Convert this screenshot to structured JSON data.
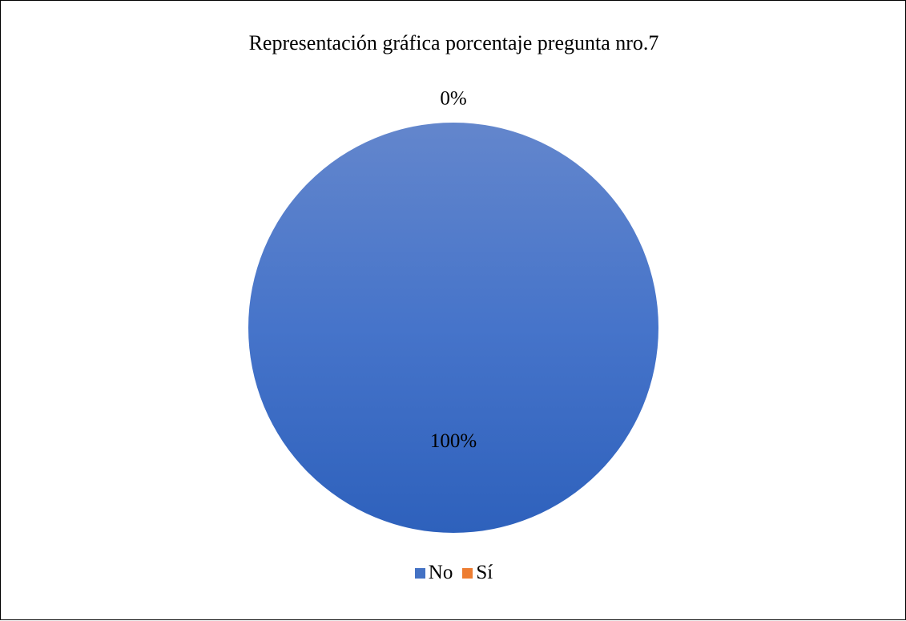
{
  "chart_data": {
    "type": "pie",
    "title": "Representación gráfica porcentaje pregunta nro.7",
    "categories": [
      "No",
      "Sí"
    ],
    "values": [
      100,
      0
    ],
    "data_labels": [
      "100%",
      "0%"
    ],
    "colors": [
      "#4472C4",
      "#ED7D31"
    ],
    "legend_position": "bottom"
  }
}
